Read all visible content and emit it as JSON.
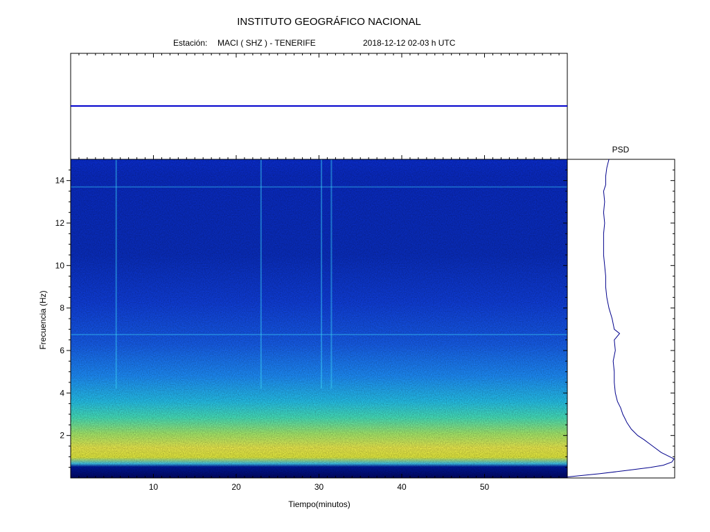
{
  "header": {
    "title": "INSTITUTO GEOGRÁFICO NACIONAL",
    "station_label": "Estación:",
    "station_name": "MACI ( SHZ ) - TENERIFE",
    "datetime": "2018-12-12  02-03 h UTC"
  },
  "chart_data": [
    {
      "type": "line",
      "panel": "seismogram",
      "title": "",
      "xlabel": "",
      "ylabel": "",
      "xlim": [
        0,
        60
      ],
      "note_values": "flat trace, near-constant amplitude over the hour",
      "x": [
        0,
        10,
        20,
        30,
        40,
        50,
        60
      ],
      "y": [
        0,
        0,
        0,
        0,
        0,
        0,
        0
      ],
      "color": "#0000cc"
    },
    {
      "type": "heatmap",
      "panel": "spectrogram",
      "xlabel": "Tiempo(minutos)",
      "ylabel": "Frecuencia  (Hz)",
      "xlim": [
        0,
        60
      ],
      "ylim": [
        0,
        15
      ],
      "xticks": [
        10,
        20,
        30,
        40,
        50
      ],
      "yticks": [
        2,
        4,
        6,
        8,
        10,
        12,
        14
      ],
      "colormap": "jet",
      "frequency_profile": {
        "freq": [
          0.0,
          0.3,
          0.5,
          0.8,
          1.0,
          1.2,
          1.5,
          2.0,
          2.5,
          3.0,
          3.5,
          4.0,
          5.0,
          6.0,
          6.8,
          7.5,
          8.0,
          9.0,
          10.0,
          11.0,
          12.0,
          13.0,
          14.0,
          15.0
        ],
        "level": [
          0.02,
          0.05,
          0.55,
          0.62,
          0.66,
          0.64,
          0.6,
          0.52,
          0.44,
          0.38,
          0.31,
          0.27,
          0.24,
          0.22,
          0.25,
          0.2,
          0.19,
          0.17,
          0.15,
          0.15,
          0.15,
          0.16,
          0.17,
          0.18
        ]
      },
      "vertical_bands_minutes": [
        5.5,
        23,
        30.3,
        31.5
      ],
      "horizontal_bands_hz": [
        6.75,
        13.7
      ]
    },
    {
      "type": "line",
      "panel": "psd",
      "title": "PSD",
      "freq": [
        0.05,
        0.2,
        0.35,
        0.5,
        0.6,
        0.75,
        0.9,
        1.0,
        1.2,
        1.5,
        1.8,
        2.0,
        2.3,
        2.6,
        2.8,
        3.0,
        3.3,
        3.6,
        4.0,
        4.5,
        5.0,
        5.5,
        6.0,
        6.5,
        6.8,
        7.0,
        7.5,
        8.0,
        8.5,
        9.0,
        9.5,
        10.0,
        10.5,
        11.0,
        11.5,
        12.0,
        12.5,
        13.0,
        13.5,
        13.8,
        14.2,
        14.6,
        15.0
      ],
      "power": [
        0.0,
        0.3,
        0.55,
        0.78,
        0.9,
        0.98,
        1.0,
        0.96,
        0.88,
        0.8,
        0.72,
        0.66,
        0.6,
        0.56,
        0.54,
        0.52,
        0.5,
        0.47,
        0.45,
        0.44,
        0.44,
        0.43,
        0.45,
        0.44,
        0.49,
        0.44,
        0.42,
        0.39,
        0.37,
        0.36,
        0.36,
        0.35,
        0.34,
        0.34,
        0.34,
        0.35,
        0.34,
        0.35,
        0.34,
        0.36,
        0.36,
        0.37,
        0.39
      ],
      "color": "#00008b"
    }
  ]
}
